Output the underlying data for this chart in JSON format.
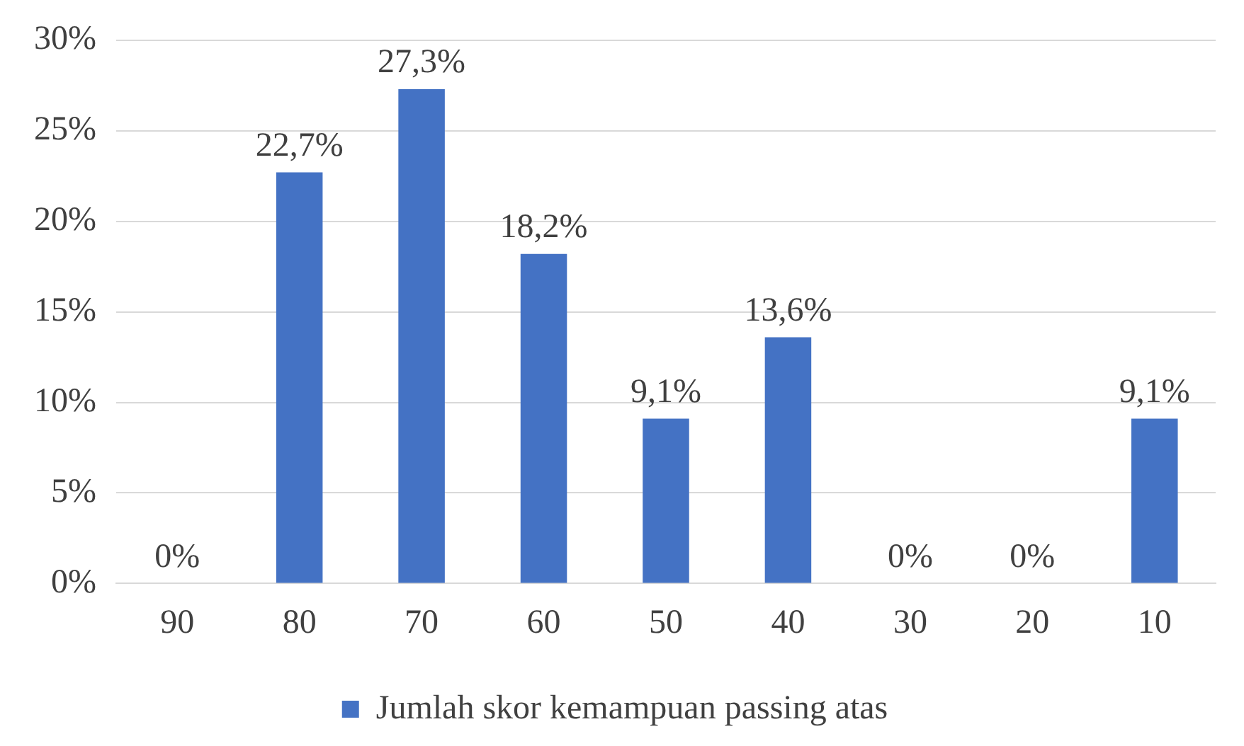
{
  "chart_data": {
    "type": "bar",
    "categories": [
      "90",
      "80",
      "70",
      "60",
      "50",
      "40",
      "30",
      "20",
      "10"
    ],
    "series": [
      {
        "name": "Jumlah skor kemampuan passing atas",
        "color": "#4472c4",
        "values": [
          0,
          22.7,
          27.3,
          18.2,
          9.1,
          13.6,
          0,
          0,
          9.1
        ],
        "value_labels": [
          "0%",
          "22,7%",
          "27,3%",
          "18,2%",
          "9,1%",
          "13,6%",
          "0%",
          "0%",
          "9,1%"
        ]
      }
    ],
    "ylim": [
      0,
      30
    ],
    "yticks": [
      {
        "value": 0,
        "label": "0%"
      },
      {
        "value": 5,
        "label": "5%"
      },
      {
        "value": 10,
        "label": "10%"
      },
      {
        "value": 15,
        "label": "15%"
      },
      {
        "value": 20,
        "label": "20%"
      },
      {
        "value": 25,
        "label": "25%"
      },
      {
        "value": 30,
        "label": "30%"
      }
    ],
    "grid": "y",
    "legend": "bottom"
  }
}
